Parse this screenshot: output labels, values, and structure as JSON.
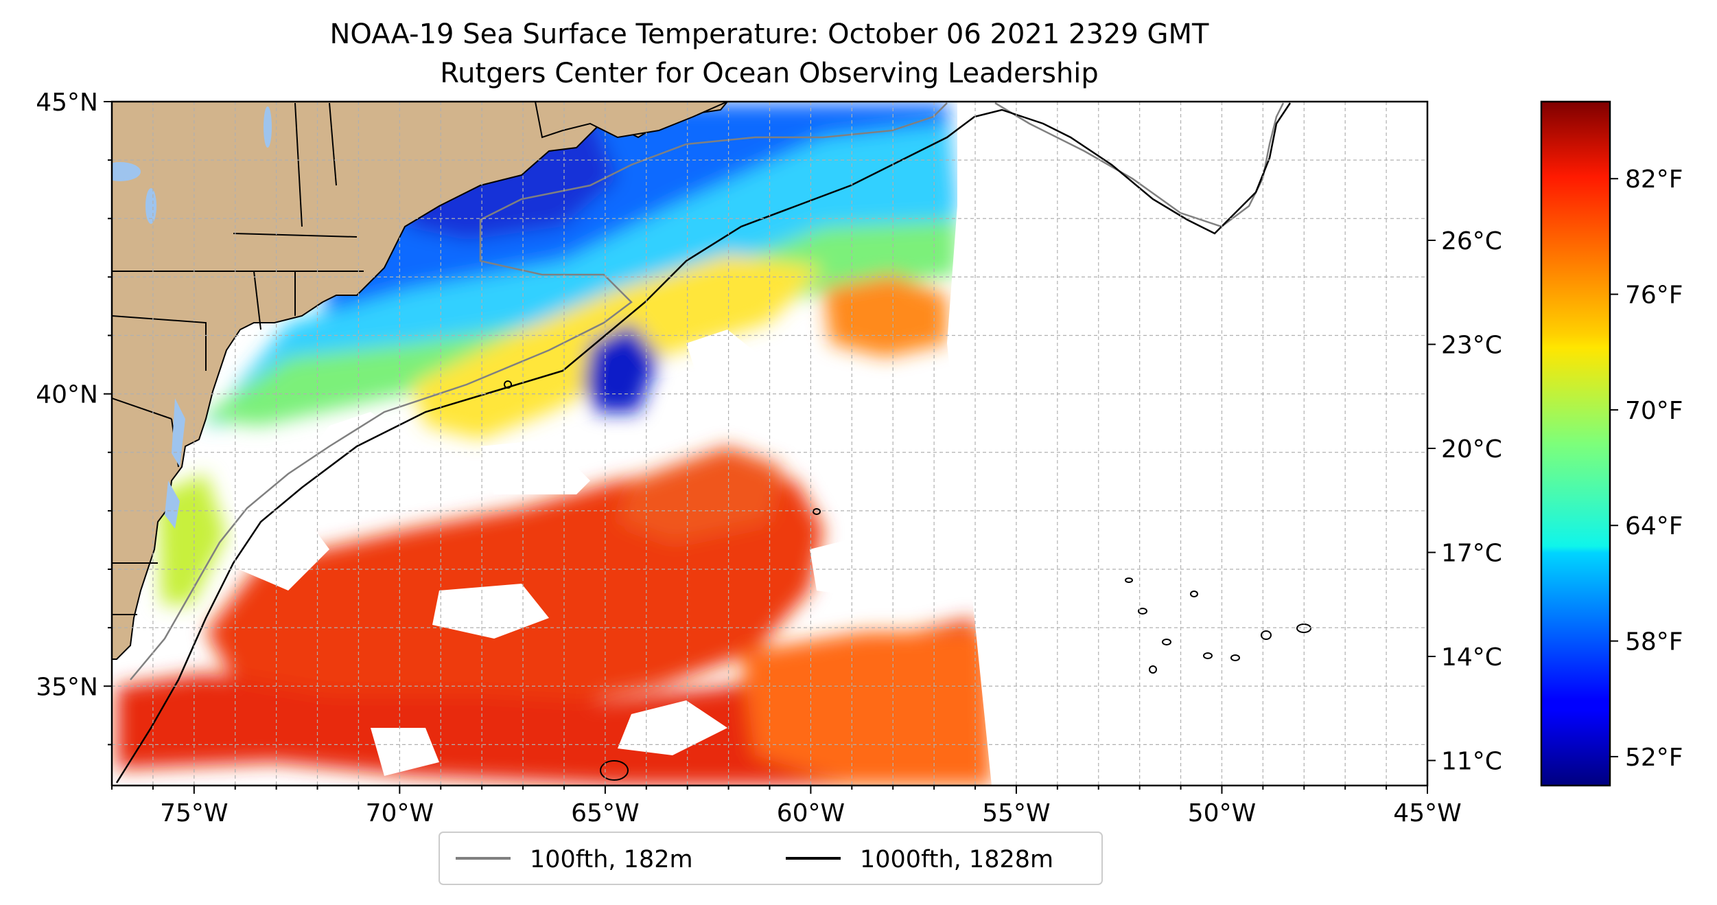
{
  "title_line1": "NOAA-19 Sea Surface Temperature: October 06 2021 2329 GMT",
  "title_line2": "Rutgers Center for Ocean Observing Leadership",
  "map": {
    "lon_range": [
      -77,
      -45
    ],
    "lat_range": [
      33.3,
      45
    ],
    "lon_ticks": [
      {
        "value": -75,
        "label": "75°W"
      },
      {
        "value": -70,
        "label": "70°W"
      },
      {
        "value": -65,
        "label": "65°W"
      },
      {
        "value": -60,
        "label": "60°W"
      },
      {
        "value": -55,
        "label": "55°W"
      },
      {
        "value": -50,
        "label": "50°W"
      },
      {
        "value": -45,
        "label": "45°W"
      }
    ],
    "lat_ticks": [
      {
        "value": 45,
        "label": "45°N"
      },
      {
        "value": 40,
        "label": "40°N"
      },
      {
        "value": 35,
        "label": "35°N"
      }
    ],
    "grid": "dashed, 1° spacing",
    "land_color": "#d2b48c",
    "lake_color": "#9ec4ee"
  },
  "legend": {
    "placement": "below map",
    "items": [
      {
        "label": "100fth, 182m",
        "color": "#808080"
      },
      {
        "label": "1000fth, 1828m",
        "color": "#000000"
      }
    ]
  },
  "colorbar": {
    "colormap": "jet",
    "range_f": [
      50.5,
      86
    ],
    "fahrenheit_ticks": [
      {
        "value": 52,
        "label": "52°F"
      },
      {
        "value": 58,
        "label": "58°F"
      },
      {
        "value": 64,
        "label": "64°F"
      },
      {
        "value": 70,
        "label": "70°F"
      },
      {
        "value": 76,
        "label": "76°F"
      },
      {
        "value": 82,
        "label": "82°F"
      }
    ],
    "celsius_ticks": [
      {
        "value": 11,
        "label": "11°C"
      },
      {
        "value": 14,
        "label": "14°C"
      },
      {
        "value": 17,
        "label": "17°C"
      },
      {
        "value": 20,
        "label": "20°C"
      },
      {
        "value": 23,
        "label": "23°C"
      },
      {
        "value": 26,
        "label": "26°C"
      }
    ]
  }
}
